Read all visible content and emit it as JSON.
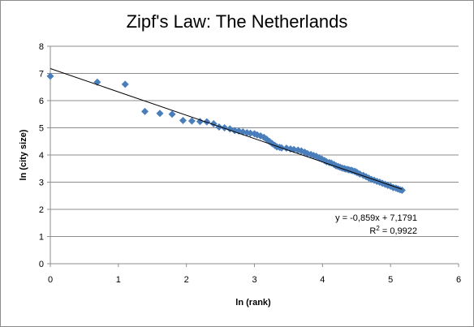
{
  "chart_data": {
    "type": "scatter",
    "title": "Zipf's Law: The Netherlands",
    "xlabel": "ln (rank)",
    "ylabel": "ln (city size)",
    "xlim": [
      0,
      6
    ],
    "ylim": [
      0,
      8
    ],
    "xticks": [
      "0",
      "1",
      "2",
      "3",
      "4",
      "5",
      "6"
    ],
    "yticks": [
      "0",
      "1",
      "2",
      "3",
      "4",
      "5",
      "6",
      "7",
      "8"
    ],
    "grid": true,
    "marker_color": "#4a7ebb",
    "trendline": {
      "slope": -0.859,
      "intercept": 7.1791,
      "equation": "y = -0,859x + 7,1791",
      "r2_prefix": "R",
      "r2_sup": "2",
      "r2_suffix": " = 0,9922",
      "color": "#000000"
    },
    "series": [
      {
        "points": [
          [
            0,
            6.9
          ],
          [
            0.69,
            6.68
          ],
          [
            1.1,
            6.6
          ],
          [
            1.39,
            5.6
          ],
          [
            1.61,
            5.53
          ],
          [
            1.79,
            5.5
          ],
          [
            1.95,
            5.27
          ],
          [
            2.08,
            5.25
          ],
          [
            2.2,
            5.23
          ],
          [
            2.3,
            5.22
          ],
          [
            2.4,
            5.15
          ],
          [
            2.48,
            5.03
          ],
          [
            2.56,
            5.0
          ],
          [
            2.64,
            4.96
          ],
          [
            2.71,
            4.9
          ],
          [
            2.77,
            4.88
          ],
          [
            2.83,
            4.85
          ],
          [
            2.89,
            4.82
          ],
          [
            2.94,
            4.8
          ],
          [
            3.0,
            4.78
          ],
          [
            3.04,
            4.74
          ],
          [
            3.09,
            4.7
          ],
          [
            3.14,
            4.65
          ],
          [
            3.18,
            4.58
          ],
          [
            3.22,
            4.5
          ],
          [
            3.26,
            4.42
          ],
          [
            3.3,
            4.35
          ],
          [
            3.33,
            4.3
          ],
          [
            3.37,
            4.28
          ],
          [
            3.4,
            4.26
          ],
          [
            3.47,
            4.25
          ],
          [
            3.53,
            4.22
          ],
          [
            3.58,
            4.2
          ],
          [
            3.64,
            4.18
          ],
          [
            3.69,
            4.15
          ],
          [
            3.74,
            4.1
          ],
          [
            3.78,
            4.05
          ],
          [
            3.83,
            4.02
          ],
          [
            3.87,
            3.98
          ],
          [
            3.91,
            3.95
          ],
          [
            3.95,
            3.9
          ],
          [
            3.99,
            3.85
          ],
          [
            4.03,
            3.8
          ],
          [
            4.06,
            3.75
          ],
          [
            4.1,
            3.72
          ],
          [
            4.13,
            3.7
          ],
          [
            4.17,
            3.65
          ],
          [
            4.2,
            3.6
          ],
          [
            4.23,
            3.58
          ],
          [
            4.26,
            3.55
          ],
          [
            4.29,
            3.52
          ],
          [
            4.32,
            3.5
          ],
          [
            4.34,
            3.48
          ],
          [
            4.37,
            3.47
          ],
          [
            4.39,
            3.45
          ],
          [
            4.42,
            3.44
          ],
          [
            4.44,
            3.42
          ],
          [
            4.47,
            3.4
          ],
          [
            4.49,
            3.38
          ],
          [
            4.51,
            3.35
          ],
          [
            4.55,
            3.3
          ],
          [
            4.6,
            3.25
          ],
          [
            4.64,
            3.2
          ],
          [
            4.68,
            3.15
          ],
          [
            4.72,
            3.1
          ],
          [
            4.76,
            3.07
          ],
          [
            4.8,
            3.03
          ],
          [
            4.84,
            3.0
          ],
          [
            4.88,
            2.96
          ],
          [
            4.92,
            2.92
          ],
          [
            4.96,
            2.88
          ],
          [
            5.0,
            2.85
          ],
          [
            5.04,
            2.8
          ],
          [
            5.08,
            2.78
          ],
          [
            5.11,
            2.75
          ],
          [
            5.14,
            2.72
          ],
          [
            5.17,
            2.7
          ]
        ]
      }
    ]
  }
}
